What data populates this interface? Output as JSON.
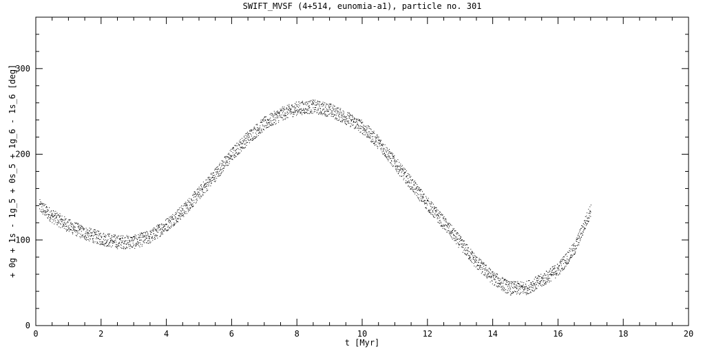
{
  "chart_data": {
    "type": "scatter",
    "title": "SWIFT_MVSF (4+514, eunomia-a1), particle no. 301",
    "xlabel": "t [Myr]",
    "ylabel": "+ 0g + 1s - 1g_5 + 0s_5 + 1g_6 - 1s_6 [deg]",
    "xlim": [
      0,
      20
    ],
    "ylim": [
      0,
      360
    ],
    "x_ticks": [
      "0",
      "2",
      "4",
      "6",
      "8",
      "10",
      "12",
      "14",
      "16",
      "18",
      "20"
    ],
    "y_ticks": [
      "0",
      "100",
      "200",
      "300"
    ],
    "grid": false,
    "legend": "none",
    "marker_color": "#000000",
    "points_spread_deg": 8,
    "series": [
      {
        "x": [
          0.1,
          0.5,
          1,
          1.5,
          2,
          2.5,
          3,
          3.5,
          4,
          4.5,
          5,
          5.5,
          6,
          6.5,
          7,
          7.5,
          8,
          8.5,
          9,
          9.5,
          10,
          10.5,
          11,
          11.5,
          12,
          12.5,
          13,
          13.5,
          14,
          14.5,
          15,
          15.5,
          16,
          16.5,
          17
        ],
        "values": [
          140,
          128,
          117,
          108,
          102,
          98,
          98,
          104,
          118,
          134,
          155,
          177,
          200,
          220,
          236,
          247,
          254,
          256,
          252,
          243,
          232,
          214,
          190,
          166,
          142,
          120,
          97,
          74,
          56,
          44,
          44,
          53,
          66,
          90,
          136
        ]
      }
    ]
  }
}
